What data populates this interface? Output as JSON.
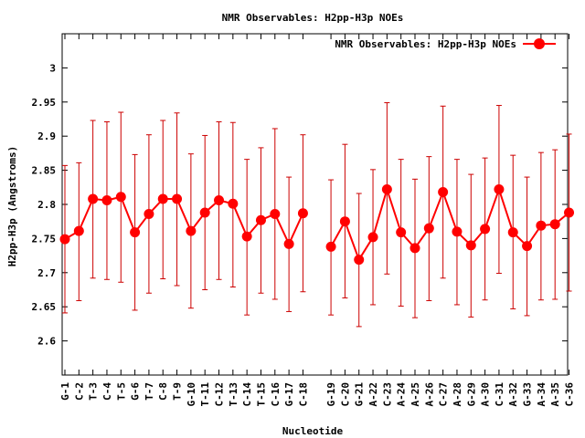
{
  "chart_data": {
    "type": "line",
    "title": "NMR Observables: H2pp-H3p NOEs",
    "xlabel": "Nucleotide",
    "ylabel": "H2pp-H3p (Angstroms)",
    "ylim": [
      2.55,
      3.05
    ],
    "yticks": [
      "2.6",
      "2.65",
      "2.7",
      "2.75",
      "2.8",
      "2.85",
      "2.9",
      "2.95",
      "3"
    ],
    "ytick_values": [
      2.6,
      2.65,
      2.7,
      2.75,
      2.8,
      2.85,
      2.9,
      2.95,
      3.0
    ],
    "legend_position": "top-right",
    "series_color": "#ff0000",
    "error_bar_color": "#cc0000",
    "series": [
      {
        "name": "NMR Observables: H2pp-H3p NOEs",
        "segments": [
          {
            "categories": [
              "G-1",
              "C-2",
              "T-3",
              "C-4",
              "T-5",
              "G-6",
              "T-7",
              "C-8",
              "T-9",
              "G-10",
              "T-11",
              "C-12",
              "T-13",
              "C-14",
              "T-15",
              "C-16",
              "G-17",
              "C-18"
            ],
            "values": [
              2.749,
              2.761,
              2.808,
              2.806,
              2.811,
              2.759,
              2.786,
              2.808,
              2.808,
              2.761,
              2.788,
              2.806,
              2.801,
              2.753,
              2.777,
              2.786,
              2.742,
              2.787
            ],
            "err_low": [
              2.641,
              2.659,
              2.692,
              2.69,
              2.686,
              2.645,
              2.67,
              2.691,
              2.681,
              2.648,
              2.675,
              2.69,
              2.679,
              2.638,
              2.67,
              2.661,
              2.643,
              2.672
            ],
            "err_high": [
              2.857,
              2.861,
              2.923,
              2.921,
              2.935,
              2.873,
              2.902,
              2.923,
              2.934,
              2.874,
              2.901,
              2.921,
              2.92,
              2.866,
              2.883,
              2.911,
              2.84,
              2.902
            ]
          },
          {
            "categories": [
              "G-19",
              "C-20",
              "G-21",
              "A-22",
              "C-23",
              "A-24",
              "A-25",
              "A-26",
              "C-27",
              "A-28",
              "G-29",
              "A-30",
              "C-31",
              "A-32",
              "G-33",
              "A-34",
              "A-35",
              "C-36"
            ],
            "values": [
              2.738,
              2.775,
              2.719,
              2.752,
              2.822,
              2.759,
              2.736,
              2.765,
              2.818,
              2.76,
              2.74,
              2.764,
              2.822,
              2.759,
              2.739,
              2.769,
              2.771,
              2.788
            ],
            "err_low": [
              2.638,
              2.663,
              2.621,
              2.653,
              2.698,
              2.651,
              2.634,
              2.659,
              2.692,
              2.653,
              2.635,
              2.66,
              2.699,
              2.647,
              2.637,
              2.66,
              2.661,
              2.673
            ],
            "err_high": [
              2.836,
              2.888,
              2.816,
              2.851,
              2.949,
              2.866,
              2.837,
              2.87,
              2.944,
              2.866,
              2.844,
              2.868,
              2.945,
              2.872,
              2.84,
              2.876,
              2.88,
              2.903
            ]
          }
        ]
      }
    ]
  }
}
